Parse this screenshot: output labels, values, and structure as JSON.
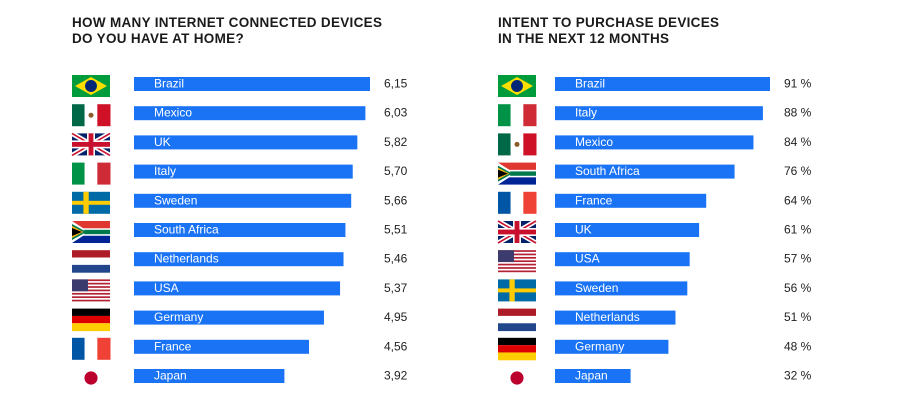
{
  "colors": {
    "bar": "#1a73f5",
    "title": "#1a1a1a",
    "value_text": "#222222",
    "bar_text": "#ffffff"
  },
  "chart_data": [
    {
      "type": "bar",
      "orientation": "horizontal",
      "title_lines": [
        "HOW MANY INTERNET CONNECTED DEVICES",
        "DO YOU HAVE AT HOME?"
      ],
      "categories": [
        "Brazil",
        "Mexico",
        "UK",
        "Italy",
        "Sweden",
        "South Africa",
        "Netherlands",
        "USA",
        "Germany",
        "France",
        "Japan"
      ],
      "values": [
        6.15,
        6.03,
        5.82,
        5.7,
        5.66,
        5.51,
        5.46,
        5.37,
        4.95,
        4.56,
        3.92
      ],
      "value_labels": [
        "6,15",
        "6,03",
        "5,82",
        "5,70",
        "5,66",
        "5,51",
        "5,46",
        "5,37",
        "4,95",
        "4,56",
        "3,92"
      ],
      "flags": [
        "brazil-flag-icon",
        "mexico-flag-icon",
        "uk-flag-icon",
        "italy-flag-icon",
        "sweden-flag-icon",
        "south-africa-flag-icon",
        "netherlands-flag-icon",
        "usa-flag-icon",
        "germany-flag-icon",
        "france-flag-icon",
        "japan-flag-icon"
      ],
      "xlim": [
        0,
        6.15
      ]
    },
    {
      "type": "bar",
      "orientation": "horizontal",
      "title_lines": [
        "INTENT TO PURCHASE DEVICES",
        "IN THE NEXT 12 MONTHS"
      ],
      "categories": [
        "Brazil",
        "Italy",
        "Mexico",
        "South Africa",
        "France",
        "UK",
        "USA",
        "Sweden",
        "Netherlands",
        "Germany",
        "Japan"
      ],
      "values": [
        91,
        88,
        84,
        76,
        64,
        61,
        57,
        56,
        51,
        48,
        32
      ],
      "value_labels": [
        "91 %",
        "88 %",
        "84 %",
        "76 %",
        "64 %",
        "61 %",
        "57 %",
        "56 %",
        "51 %",
        "48 %",
        "32 %"
      ],
      "flags": [
        "brazil-flag-icon",
        "italy-flag-icon",
        "mexico-flag-icon",
        "south-africa-flag-icon",
        "france-flag-icon",
        "uk-flag-icon",
        "usa-flag-icon",
        "sweden-flag-icon",
        "netherlands-flag-icon",
        "germany-flag-icon",
        "japan-flag-icon"
      ],
      "xlim": [
        0,
        91
      ]
    }
  ]
}
